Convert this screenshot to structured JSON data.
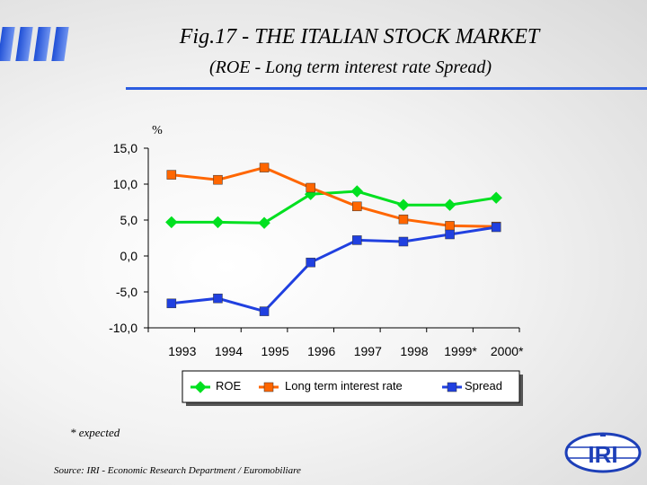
{
  "title": "Fig.17 - THE ITALIAN STOCK MARKET",
  "subtitle": "(ROE - Long term interest rate Spread)",
  "footnote": "* expected",
  "source": "Source: IRI - Economic Research Department / Euromobiliare",
  "logo_text": "IRI",
  "chart_data": {
    "type": "line",
    "ylabel": "%",
    "xlabel": "",
    "x": [
      "1993",
      "1994",
      "1995",
      "1996",
      "1997",
      "1998",
      "1999*",
      "2000*"
    ],
    "ylim": [
      -10,
      15
    ],
    "yticks": [
      15,
      10,
      5,
      0,
      -5,
      -10
    ],
    "ytick_labels": [
      "15,0",
      "10,0",
      "5,0",
      "0,0",
      "-5,0",
      "-10,0"
    ],
    "grid": false,
    "legend_position": "bottom",
    "series": [
      {
        "name": "ROE",
        "color": "#00e020",
        "marker": "diamond",
        "values": [
          4.7,
          4.7,
          4.6,
          8.6,
          9.0,
          7.1,
          7.1,
          8.1
        ]
      },
      {
        "name": "Long term interest rate",
        "color": "#ff6600",
        "marker": "square",
        "values": [
          11.3,
          10.6,
          12.3,
          9.5,
          6.9,
          5.1,
          4.2,
          4.1
        ]
      },
      {
        "name": "Spread",
        "color": "#2040e0",
        "marker": "square",
        "values": [
          -6.6,
          -5.9,
          -7.7,
          -0.9,
          2.2,
          2.0,
          3.0,
          4.0
        ]
      }
    ]
  }
}
